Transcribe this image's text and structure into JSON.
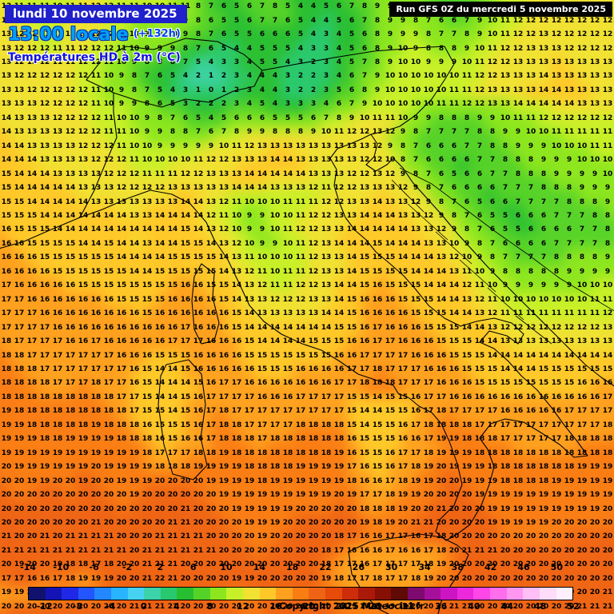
{
  "header": {
    "date_line": "lundi 10 novembre 2025",
    "time_line": "13:00 locale",
    "time_offset": "(+132h)",
    "variable_title": "Températures HD à 2m (°C)",
    "run_label": "Run GFS 0Z du mercredi 5 novembre 2025"
  },
  "footer": {
    "copyright": "Copyright 2025 Meteociel.fr"
  },
  "colors": {
    "date_banner_bg": "#2020cc",
    "run_banner_bg": "#000000",
    "time_text": "#00a2f5",
    "title_text": "#1212dd",
    "number_text": "#000000"
  },
  "scale": {
    "unit": "°C",
    "min": -14,
    "max": 52,
    "step": 2,
    "top_labels": [
      -14,
      -10,
      -6,
      -2,
      2,
      6,
      10,
      14,
      18,
      22,
      26,
      30,
      34,
      38,
      42,
      46,
      50
    ],
    "bottom_labels": [
      -12,
      -8,
      -4,
      0,
      4,
      8,
      12,
      16,
      20,
      24,
      28,
      32,
      36,
      40,
      44,
      48,
      52
    ],
    "palette": [
      "#11116e",
      "#1414b4",
      "#1e28e6",
      "#2356ff",
      "#2387ff",
      "#28b4ff",
      "#46d2f0",
      "#3cd2aa",
      "#28c86e",
      "#28be32",
      "#55d228",
      "#8ce61e",
      "#c8f028",
      "#f0e132",
      "#ffc828",
      "#ffa01e",
      "#fa7d14",
      "#ef6414",
      "#e64b0a",
      "#cd2d0a",
      "#aa190a",
      "#871005",
      "#5f0a05",
      "#7d0a6e",
      "#a50f9b",
      "#cd14c3",
      "#eb28dc",
      "#ff46e6",
      "#ff6eeb",
      "#ff96f0",
      "#ffbef5",
      "#ffdcfa",
      "#fff0fd"
    ]
  },
  "map_grid": {
    "cols": 48,
    "rows": [
      "13 11 11 11 10 11 11 12 12 11 11 10 10 11 11 8 7 6 5 6 7 8 5 4 4 5 6 7 8 9 9 8 7 6 5 6 8 9 10 11 12 12 12 11 12 12 12 12",
      "13 12 11 11 11 11 11 12 12 11 10 10 10 10 9 8 6 5 5 6 7 7 6 5 4 4 5 6 7 8 9 9 8 7 6 6 7 9 10 11 12 12 12 12 12 12 12 12",
      "13 12 12 11 11 11 12 12 12 11 10 9 9 10 9 8 7 6 5 5 6 6 6 5 4 3 4 5 6 8 9 9 9 8 7 7 8 9 10 11 12 12 13 12 12 12 12 12",
      "13 12 12 12 11 11 12 12 12 11 10 9 9 9 8 7 6 5 4 4 5 5 5 4 3 3 4 5 6 8 9 10 9 8 8 8 9 10 11 12 12 13 13 13 12 12 12 12",
      "13 12 12 12 11 11 12 12 11 10 9 8 8 8 7 5 4 3 3 4 5 5 4 3 2 3 4 5 7 8 9 10 10 9 9 9 10 11 12 12 13 13 13 13 13 13 13 13",
      "13 12 12 12 12 12 12 11 10 9 8 7 6 5 4 2 1 2 3 4 4 4 3 2 2 3 4 6 7 9 10 10 10 10 10 10 11 12 12 13 13 13 14 13 13 13 13 13",
      "13 13 12 12 12 12 12 11 10 9 8 7 5 4 3 1 0 1 2 3 4 4 3 2 2 3 5 6 8 9 10 10 10 10 10 11 11 12 13 13 13 13 14 14 13 13 13 13",
      "13 13 13 12 12 12 12 11 10 9 9 8 6 5 3 2 2 2 3 4 5 4 3 3 3 4 6 7 9 10 10 10 10 10 11 11 12 12 13 13 14 14 14 14 14 13 13 13",
      "14 13 13 13 12 12 12 12 11 10 10 9 8 7 6 5 4 5 6 6 6 5 5 5 6 7 8 9 10 11 11 10 9 9 8 8 8 9 9 10 11 11 12 12 12 12 12 12",
      "14 13 13 13 13 12 12 12 11 11 10 9 9 8 8 7 6 7 8 9 9 8 8 8 9 10 11 12 12 13 12 9 8 7 7 7 7 8 8 9 9 10 10 11 11 11 11 11",
      "14 14 13 13 13 13 12 12 12 11 10 10 9 9 9 9 9 10 11 12 13 13 13 13 13 13 13 13 13 12 9 8 7 6 6 6 7 7 8 8 9 9 9 10 10 10 11 11",
      "14 14 14 13 13 13 13 12 12 12 11 10 10 10 10 11 12 12 13 13 13 14 14 13 13 13 13 13 12 12 10 8 7 6 6 6 6 7 7 8 8 8 9 9 9 10 10 10",
      "15 14 14 14 13 13 13 13 12 12 12 11 11 11 12 12 13 13 13 14 14 14 14 14 13 13 13 12 12 13 12 9 8 7 6 5 6 6 7 7 8 8 8 9 9 9 9 10",
      "15 14 14 14 14 14 13 13 13 12 12 12 12 13 13 13 13 13 14 14 14 13 13 13 12 11 12 12 13 13 13 12 9 8 7 6 6 6 6 7 7 7 8 8 8 9 9 9",
      "15 15 14 14 14 14 14 13 13 13 13 13 13 13 14 14 13 12 11 10 10 10 11 11 11 12 12 13 13 14 13 13 12 9 8 7 6 5 6 6 7 7 7 7 8 8 8 9",
      "15 15 15 14 14 14 14 14 14 14 13 13 14 14 14 14 12 11 10 9 9 10 10 11 12 12 13 13 14 14 14 13 13 12 9 8 7 6 5 5 6 6 6 7 7 7 8 8",
      "16 15 15 15 14 14 14 14 14 14 14 14 14 14 15 14 13 12 10 9 9 10 11 12 12 13 13 14 14 14 14 14 13 13 12 9 8 7 6 5 5 6 6 6 6 7 7 8",
      "16 16 15 15 15 15 14 14 15 14 14 13 14 14 15 15 14 13 12 10 9 9 10 11 12 13 14 14 14 15 14 14 14 13 13 10 9 8 7 6 6 6 6 7 7 7 7 8",
      "16 16 16 15 15 15 15 15 15 14 14 14 14 15 15 15 15 14 13 11 10 10 10 11 12 13 13 14 15 15 15 14 14 14 13 12 10 9 8 7 7 7 7 8 8 8 8 9",
      "16 16 16 16 15 15 15 15 15 15 14 14 15 15 15 15 15 14 13 12 11 10 11 11 12 13 13 14 15 15 15 15 14 14 14 13 11 10 9 8 8 8 8 8 9 9 9 9",
      "17 16 16 16 16 16 15 15 15 15 15 15 15 15 16 16 15 15 14 13 12 11 11 12 12 13 14 14 15 16 15 15 15 14 14 14 12 11 10 9 9 9 9 9 9 10 10 10",
      "17 17 16 16 16 16 16 16 16 15 15 15 15 16 16 16 16 15 14 13 13 12 12 12 13 13 14 15 16 16 16 15 15 15 14 14 13 12 11 10 10 10 10 10 10 10 11 11",
      "17 17 17 16 16 16 16 16 16 16 16 15 16 16 16 16 16 16 15 14 13 13 13 13 13 14 14 15 16 16 16 16 15 15 15 14 14 13 12 11 11 11 11 11 11 11 11 12",
      "17 17 17 17 16 16 16 16 16 16 16 16 16 16 17 16 16 16 15 14 14 14 14 14 14 14 15 15 16 17 16 16 16 15 15 15 14 14 13 12 12 12 12 12 12 12 12 13",
      "18 17 17 17 17 16 16 17 16 16 16 16 16 17 17 17 16 16 16 15 14 14 14 14 15 15 15 16 16 17 17 16 16 16 15 15 15 14 14 13 13 13 13 13 13 13 13 13",
      "18 18 17 17 17 17 17 17 17 16 16 16 15 15 15 16 16 16 16 15 15 15 15 15 15 15 16 16 17 17 17 17 16 16 16 15 15 15 14 14 14 14 14 14 14 14 14 14",
      "18 18 18 17 17 17 17 17 17 17 16 15 14 14 15 16 16 16 16 16 15 15 15 16 16 16 16 17 17 18 17 17 17 16 16 16 15 15 15 14 14 14 15 15 15 15 15 15",
      "18 18 18 18 17 17 17 18 17 17 16 15 14 14 14 15 16 17 17 16 16 16 16 16 16 16 17 17 18 18 18 17 17 17 16 16 16 15 15 15 15 15 15 15 15 16 16 16",
      "18 18 18 18 18 18 18 18 18 17 17 15 14 14 15 16 17 17 17 17 16 16 16 17 17 17 17 15 15 14 15 15 16 17 17 16 16 16 16 16 16 16 16 16 16 16 16 17",
      "19 18 18 18 18 18 18 18 18 18 17 15 15 14 15 16 17 18 17 17 17 17 17 17 17 17 17 15 14 14 15 15 16 17 18 17 17 17 17 16 16 16 16 16 17 17 17 17",
      "19 19 18 18 18 18 18 19 18 18 18 16 15 15 15 16 17 18 18 17 17 17 17 18 18 18 18 15 14 15 15 16 17 18 18 18 18 17 17 17 17 17 17 17 17 17 17 18",
      "19 19 19 18 18 19 19 19 19 18 18 18 16 15 16 16 17 18 18 18 17 18 18 18 18 18 18 16 15 15 15 16 16 17 19 19 18 18 18 17 17 17 17 17 18 18 18 18",
      "19 19 19 19 19 19 19 19 19 19 19 18 17 17 17 18 18 19 18 18 18 18 18 18 18 18 19 16 15 15 16 17 17 18 19 19 19 18 18 18 18 18 18 18 18 18 18 18",
      "20 19 19 19 19 19 19 20 19 19 19 19 18 18 18 19 19 19 19 18 18 18 18 19 19 19 19 17 16 15 16 17 18 19 20 19 19 19 18 18 18 18 18 18 18 19 19 19",
      "20 20 19 19 20 20 19 20 20 19 19 19 20 20 20 20 19 19 19 19 18 19 19 19 19 19 19 18 16 16 17 18 19 19 20 20 19 19 19 18 18 18 18 19 19 19 19 19",
      "20 20 20 20 20 20 20 20 20 20 19 20 20 20 20 20 20 19 19 19 19 19 19 19 19 19 20 19 17 17 18 19 19 20 20 20 20 19 19 19 19 19 19 19 19 19 19 19",
      "20 20 20 20 20 20 20 20 20 20 20 20 20 20 21 20 20 20 19 19 19 19 19 20 20 20 20 20 18 18 18 19 20 20 21 20 20 20 19 19 19 19 19 19 19 19 19 20",
      "20 20 20 20 20 20 20 21 20 20 20 20 20 21 21 20 20 20 20 19 19 19 20 20 20 20 20 20 19 18 19 20 21 21 20 20 20 20 19 19 19 19 19 20 20 20 20 20",
      "21 20 20 21 20 21 21 21 21 20 20 20 21 21 21 21 20 20 20 20 19 20 20 20 20 20 18 17 16 16 17 17 16 17 18 20 20 20 20 20 20 20 20 20 20 20 20 20",
      "21 21 21 21 21 21 21 21 21 21 20 21 21 21 21 21 21 20 20 20 20 20 20 20 20 18 17 16 16 16 17 16 16 17 18 20 21 21 21 20 20 20 20 20 20 20 20 20",
      "20 19 20 20 19 18 18 17 18 20 20 21 21 21 20 20 20 20 20 20 20 20 20 20 20 18 17 17 16 17 17 17 17 18 19 20 20 20 20 20 20 20 20 20 20 20 20 20",
      "17 17 16 16 17 18 19 19 19 20 20 21 22 21 20 20 20 20 19 19 20 20 20 20 20 19 18 17 17 18 17 17 18 19 20 20 20 20 20 20 20 20 20 20 20 20 20 20",
      "19 19 20 20 20 20 20 20 20 20 20 21 21 21 20 20 20 20 20 19 19 20 20 20 20 20 19 18 18 18 18 18 19 20 20 20 20 20 20 20 20 20 20 20 20 20 20 21",
      "20 20 20 20 20 20 20 20 20 20 21 21 21 21 20 20 20 20 20 20 20 20 20 20 20 20 20 19 19 19 19 19 20 20 20 21 21 20 20 20 20 20 20 20 20 21 21 21"
    ]
  }
}
